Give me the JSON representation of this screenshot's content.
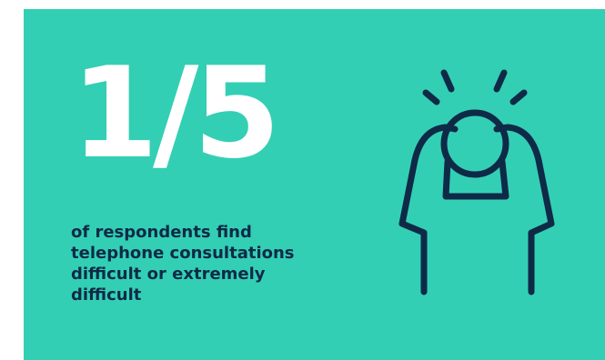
{
  "infographic": {
    "stat_value": "1/5",
    "caption": "of respondents find\ntelephone consultations\ndifficult or extremely\ndifficult",
    "icon": "stressed-person-icon",
    "colors": {
      "background": "#33cfb4",
      "stat_text": "#ffffff",
      "caption_text": "#0e2a47",
      "icon_stroke": "#0e2a47"
    }
  }
}
